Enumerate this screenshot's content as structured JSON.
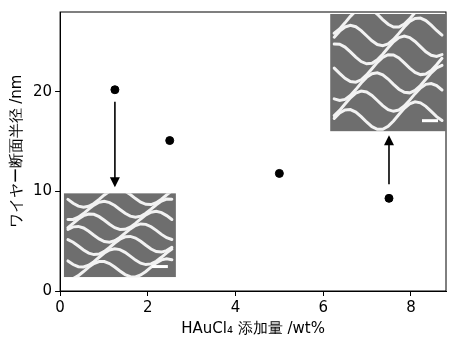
{
  "chart_data": {
    "type": "scatter",
    "x_label": "HAuCl₄ 添加量 /wt%",
    "y_label": "ワイヤー断面半径 /nm",
    "x": [
      1.25,
      2.5,
      5,
      7.5
    ],
    "values": [
      20.2,
      15.1,
      11.8,
      9.3
    ],
    "color": "#000000",
    "marker": "circle",
    "xlim": [
      0,
      8.8
    ],
    "ylim": [
      0,
      28
    ],
    "xticks": [
      0,
      2,
      4,
      6,
      8
    ],
    "yticks": [
      0,
      10,
      20
    ],
    "grid": false
  }
}
